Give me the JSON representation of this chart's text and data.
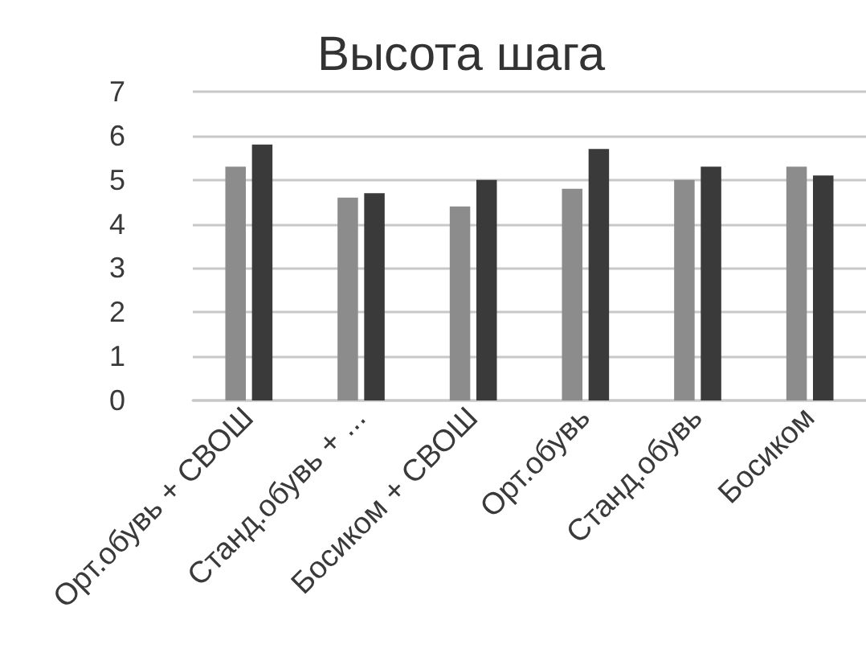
{
  "chart_data": {
    "type": "bar",
    "title": "Высота шага",
    "categories": [
      "Орт.обувь + СВОШ",
      "Станд.обувь + ...",
      "Босиком + СВОШ",
      "Орт.обувь",
      "Станд.обувь",
      "Босиком"
    ],
    "series": [
      {
        "color": "#8c8c8c",
        "values": [
          5.3,
          4.6,
          4.4,
          4.8,
          5.0,
          5.3
        ]
      },
      {
        "color": "#3a3a3a",
        "values": [
          5.8,
          4.7,
          5.0,
          5.7,
          5.3,
          5.1
        ]
      }
    ],
    "ylim": [
      0,
      7
    ],
    "yticks": [
      0,
      1,
      2,
      3,
      4,
      5,
      6,
      7
    ],
    "grid": "y"
  }
}
